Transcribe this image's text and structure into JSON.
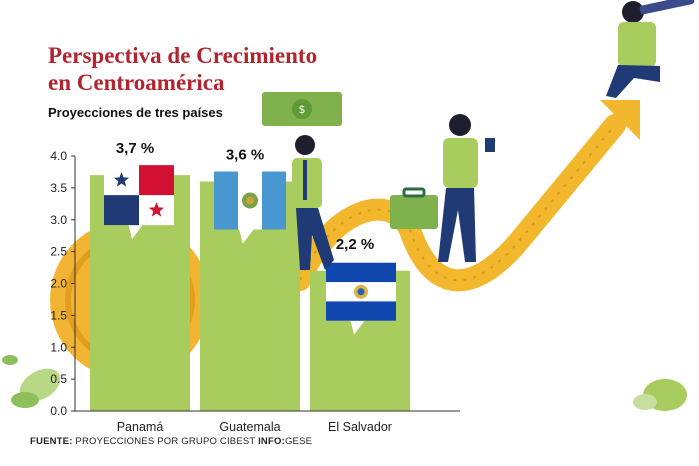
{
  "title_line1": "Perspectiva de Crecimiento",
  "title_line2": "en Centroamérica",
  "subtitle": "Proyecciones de tres países",
  "footer": {
    "source_label": "FUENTE:",
    "source_text": "PROYECCIONES POR GRUPO CIBEST",
    "info_label": "INFO:",
    "info_text": "GESE"
  },
  "colors": {
    "bar": "#a9cc5e",
    "arrow": "#f3b72e",
    "coin": "#f2b533",
    "title": "#b2242e",
    "axis": "#333333"
  },
  "chart_data": {
    "type": "bar",
    "categories": [
      "Panamá",
      "Guatemala",
      "El Salvador"
    ],
    "values": [
      3.7,
      3.6,
      2.2
    ],
    "value_labels": [
      "3,7 %",
      "3,6 %",
      "2,2 %"
    ],
    "flags": [
      "flag-panama-icon",
      "flag-guatemala-icon",
      "flag-el-salvador-icon"
    ],
    "yticks": [
      "0.0",
      "0.5",
      "1.0",
      "1.5",
      "2.0",
      "2.5",
      "3.0",
      "3.5",
      "4.0"
    ],
    "ylim": [
      0,
      4
    ],
    "grid": false,
    "legend": "none"
  }
}
